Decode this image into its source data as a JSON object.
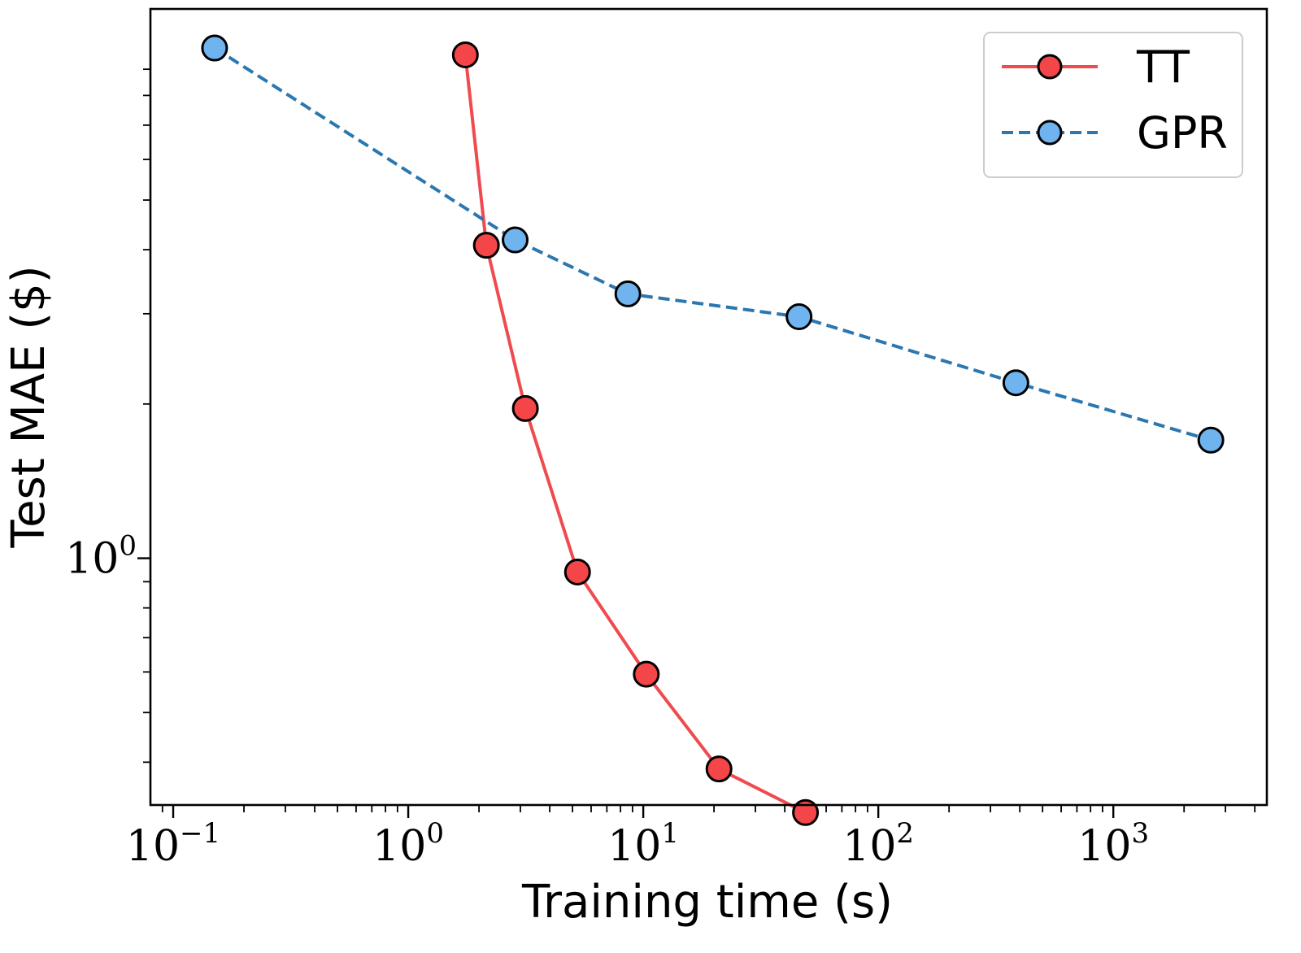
{
  "chart_data": {
    "type": "line",
    "title": "",
    "xlabel": "Training time (s)",
    "ylabel": "Test MAE ($)",
    "xscale": "log",
    "yscale": "log",
    "xlim": [
      0.08,
      4500
    ],
    "ylim": [
      0.33,
      11.8
    ],
    "x_ticks": [
      {
        "base": "10",
        "exp": "−1",
        "value": 0.1
      },
      {
        "base": "10",
        "exp": "0",
        "value": 1
      },
      {
        "base": "10",
        "exp": "1",
        "value": 10
      },
      {
        "base": "10",
        "exp": "2",
        "value": 100
      },
      {
        "base": "10",
        "exp": "3",
        "value": 1000
      }
    ],
    "y_ticks": [
      {
        "base": "10",
        "exp": "0",
        "value": 1
      }
    ],
    "grid": false,
    "legend_position": "top-right",
    "series": [
      {
        "name": "TT",
        "color": "#ef4b4f",
        "marker_fill": "#f44649",
        "linestyle": "solid",
        "x": [
          1.75,
          2.15,
          3.15,
          5.25,
          10.3,
          21.0,
          49.0
        ],
        "y": [
          9.6,
          4.08,
          1.96,
          0.94,
          0.594,
          0.388,
          0.319
        ]
      },
      {
        "name": "GPR",
        "color": "#2b77b0",
        "marker_fill": "#6fb3ef",
        "linestyle": "dashed",
        "x": [
          0.15,
          2.85,
          8.6,
          46.0,
          385.0,
          2600.0
        ],
        "y": [
          9.9,
          4.18,
          3.28,
          2.96,
          2.2,
          1.7
        ]
      }
    ]
  }
}
